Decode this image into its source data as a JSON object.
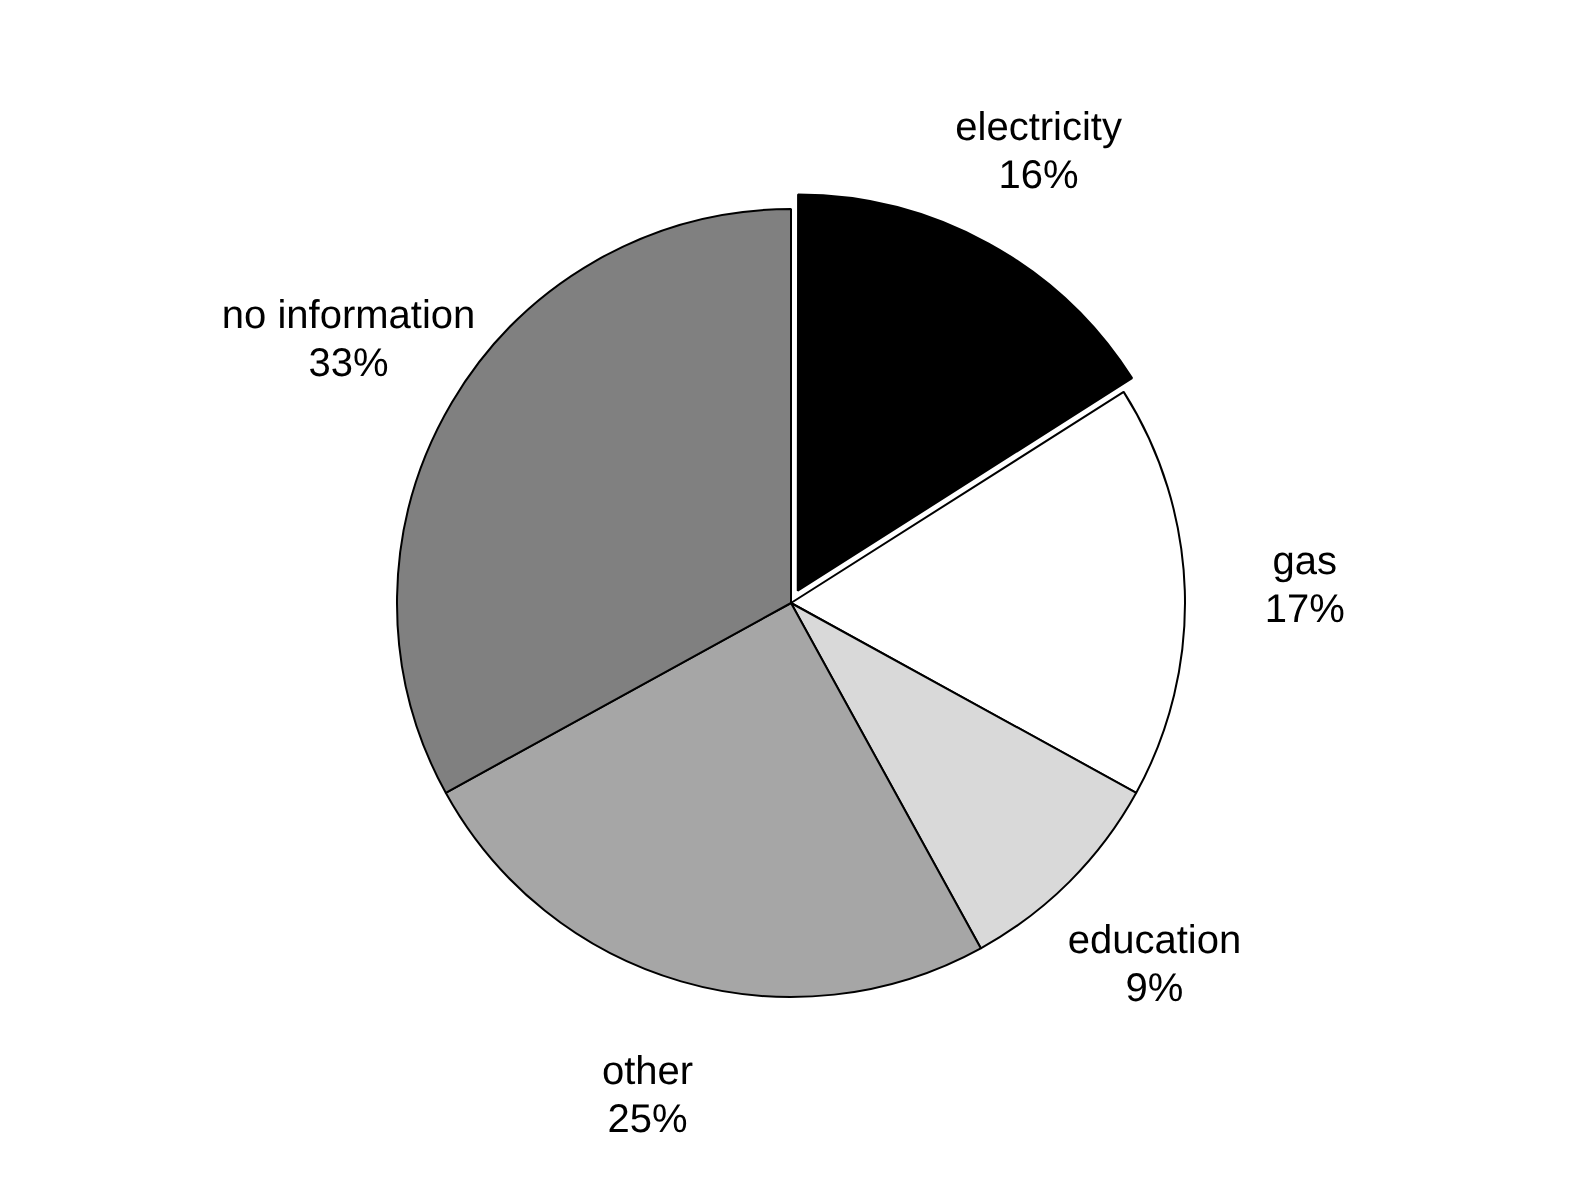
{
  "chart_data": {
    "type": "pie",
    "categories": [
      "electricity",
      "gas",
      "education",
      "other",
      "no information"
    ],
    "values": [
      16,
      17,
      9,
      25,
      33
    ],
    "colors": [
      "#000000",
      "#ffffff",
      "#d9d9d9",
      "#a6a6a6",
      "#808080"
    ],
    "value_labels": [
      "16%",
      "17%",
      "9%",
      "25%",
      "33%"
    ],
    "legend": false
  }
}
